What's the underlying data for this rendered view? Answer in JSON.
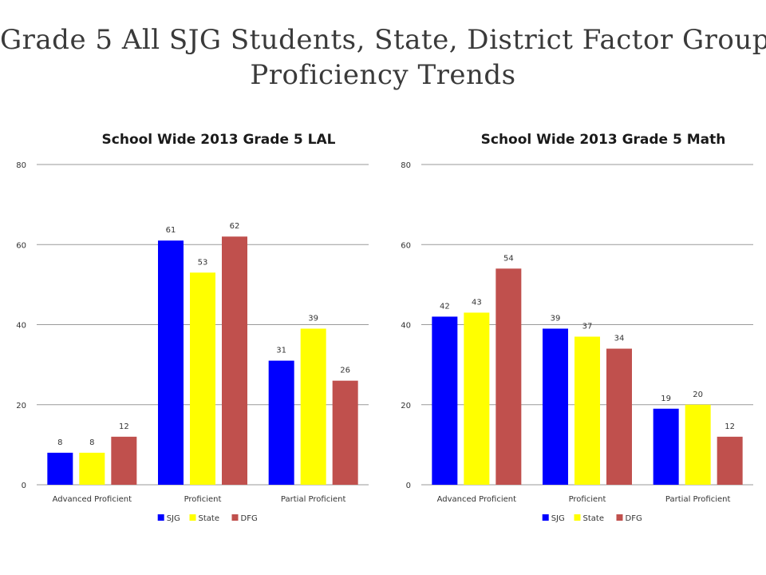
{
  "slide": {
    "title_line1": "Grade 5 All SJG Students, State, District Factor Group",
    "title_line2": "Proficiency Trends"
  },
  "chart_data": [
    {
      "type": "bar",
      "title": "School Wide 2013 Grade 5 LAL",
      "categories": [
        "Advanced Proficient",
        "Proficient",
        "Partial Proficient"
      ],
      "series": [
        {
          "name": "SJG",
          "color": "#0000ff",
          "values": [
            8,
            61,
            31
          ]
        },
        {
          "name": "State",
          "color": "#ffff00",
          "values": [
            8,
            53,
            39
          ]
        },
        {
          "name": "DFG",
          "color": "#c0504d",
          "values": [
            12,
            62,
            26
          ]
        }
      ],
      "ylim": [
        0,
        80
      ],
      "yticks": [
        0,
        20,
        40,
        60,
        80
      ],
      "grid": true,
      "legend": "bottom"
    },
    {
      "type": "bar",
      "title": "School Wide 2013 Grade 5 Math",
      "categories": [
        "Advanced Proficient",
        "Proficient",
        "Partial Proficient"
      ],
      "series": [
        {
          "name": "SJG",
          "color": "#0000ff",
          "values": [
            42,
            39,
            19
          ]
        },
        {
          "name": "State",
          "color": "#ffff00",
          "values": [
            43,
            37,
            20
          ]
        },
        {
          "name": "DFG",
          "color": "#c0504d",
          "values": [
            54,
            34,
            12
          ]
        }
      ],
      "ylim": [
        0,
        80
      ],
      "yticks": [
        0,
        20,
        40,
        60,
        80
      ],
      "grid": true,
      "legend": "bottom"
    }
  ]
}
